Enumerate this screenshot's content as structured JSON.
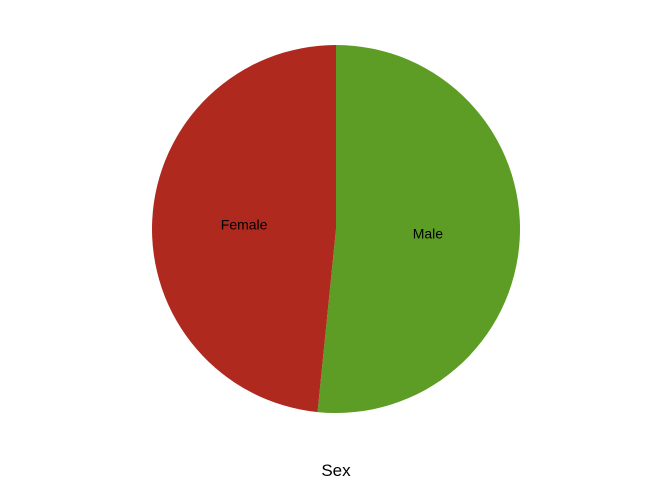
{
  "chart_data": {
    "type": "pie",
    "xlabel": "Sex",
    "slices": [
      {
        "label": "Male",
        "value": 51.6,
        "color": "#5d9d26"
      },
      {
        "label": "Female",
        "value": 48.4,
        "color": "#b0291f"
      }
    ],
    "start_angle_deg": 0,
    "direction": "clockwise",
    "legend": "none",
    "grid": false
  }
}
